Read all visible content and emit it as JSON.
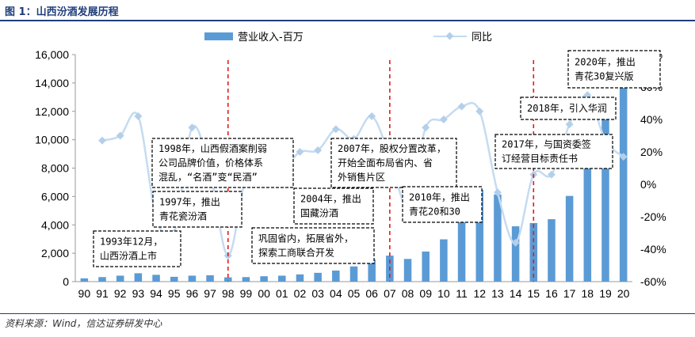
{
  "figure_title": "图 1：山西汾酒发展历程",
  "source": "资料来源：Wind，信达证券研发中心",
  "colors": {
    "bar": "#5b9bd5",
    "line": "#c5dbf0",
    "marker": "#b4cfea",
    "event_line": "#e31a1c",
    "heading": "#1f3d7a"
  },
  "chart_data": {
    "type": "bar",
    "categories": [
      "90",
      "91",
      "92",
      "93",
      "94",
      "95",
      "96",
      "97",
      "98",
      "99",
      "00",
      "01",
      "02",
      "03",
      "04",
      "05",
      "06",
      "07",
      "08",
      "09",
      "10",
      "11",
      "12",
      "13",
      "14",
      "15",
      "16",
      "17",
      "18",
      "19",
      "20"
    ],
    "series": [
      {
        "name": "营业收入-百万",
        "type": "bar",
        "axis": "left",
        "values": [
          230,
          320,
          420,
          590,
          480,
          340,
          420,
          450,
          300,
          320,
          380,
          420,
          510,
          620,
          780,
          1070,
          1560,
          1830,
          1600,
          2120,
          2980,
          4450,
          6470,
          6140,
          3900,
          4130,
          4400,
          6040,
          9380,
          11900,
          13990
        ]
      },
      {
        "name": "同比",
        "type": "line",
        "axis": "right",
        "unit": "%",
        "values": [
          null,
          27,
          30,
          42,
          -20,
          -30,
          35,
          7,
          -44,
          5,
          20,
          10,
          20,
          21,
          34,
          28,
          42,
          17,
          -13,
          35,
          40,
          48,
          45,
          -5,
          -36,
          6,
          6,
          37,
          55,
          27,
          17
        ]
      }
    ],
    "y_left": {
      "min": 0,
      "max": 16000,
      "ticks": [
        "0",
        "2,000",
        "4,000",
        "6,000",
        "8,000",
        "10,000",
        "12,000",
        "14,000",
        "16,000"
      ]
    },
    "y_right": {
      "min": -60,
      "max": 80,
      "ticks": [
        "-60%",
        "-40%",
        "-20%",
        "0%",
        "20%",
        "40%",
        "60%",
        "80%"
      ]
    },
    "legend_position": "top",
    "event_years": [
      "98",
      "07",
      "15"
    ],
    "annotations": [
      {
        "year": "93",
        "lines": [
          "1993年12月，",
          "山西汾酒上市"
        ]
      },
      {
        "year": "97",
        "lines": [
          "1997年，推出",
          "青花瓷汾酒"
        ]
      },
      {
        "year": "98",
        "lines": [
          "1998年，山西假酒案削弱",
          "公司品牌价值，价格体系",
          "混乱，“名酒”变“民酒”"
        ]
      },
      {
        "year": "04",
        "lines": [
          "巩固省内，拓展省外，",
          "探索工商联合开发"
        ]
      },
      {
        "year": "04",
        "lines": [
          "2004年，推出",
          "国藏汾酒"
        ]
      },
      {
        "year": "07",
        "lines": [
          "2007年，股权分置改革，",
          "开始全面布局省内、省",
          "外销售片区"
        ]
      },
      {
        "year": "10",
        "lines": [
          "2010年，推出",
          "青花20和30"
        ]
      },
      {
        "year": "17",
        "lines": [
          "2017年，与国资委签",
          "订经营目标责任书"
        ]
      },
      {
        "year": "18",
        "lines": [
          "2018年，引入华润"
        ]
      },
      {
        "year": "20",
        "lines": [
          "2020年，推出",
          "青花30复兴版"
        ]
      }
    ]
  }
}
